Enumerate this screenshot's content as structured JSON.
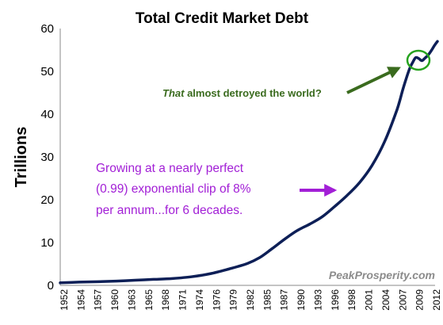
{
  "chart_data": {
    "type": "line",
    "title": "Total Credit Market Debt",
    "ylabel": "Trillions",
    "xlabel": "",
    "ylim": [
      0,
      60
    ],
    "xlim": [
      1952,
      2012.5
    ],
    "y_ticks": [
      "0",
      "10",
      "20",
      "30",
      "40",
      "50",
      "60"
    ],
    "x_ticks": [
      "1952",
      "1954",
      "1957",
      "1960",
      "1963",
      "1965",
      "1968",
      "1971",
      "1974",
      "1976",
      "1979",
      "1982",
      "1985",
      "1987",
      "1990",
      "1993",
      "1996",
      "1998",
      "2001",
      "2004",
      "2007",
      "2009",
      "2012"
    ],
    "grid": false,
    "colors": {
      "line": "#0d1f57",
      "annotation_green": "#3a6b1e",
      "highlight_circle": "#26a31f",
      "annotation_purple": "#a21fd6",
      "watermark": "#8c8c8c"
    },
    "series": [
      {
        "x": [
          1952,
          1955,
          1958,
          1961,
          1964,
          1967,
          1970,
          1973,
          1976,
          1979,
          1982,
          1984,
          1986,
          1988,
          1990,
          1992,
          1994,
          1996,
          1998,
          2000,
          2002,
          2004,
          2006,
          2007,
          2008,
          2008.5,
          2009,
          2009.5,
          2010,
          2010.5,
          2011,
          2011.5,
          2012,
          2012.5
        ],
        "y": [
          0.6,
          0.75,
          0.85,
          1.0,
          1.2,
          1.4,
          1.6,
          2.0,
          2.7,
          3.8,
          5.1,
          6.5,
          8.6,
          10.8,
          12.8,
          14.3,
          16.0,
          18.4,
          21.0,
          24.0,
          28.0,
          33.5,
          41.0,
          46.0,
          50.5,
          52.0,
          53.2,
          53.0,
          52.5,
          53.1,
          53.8,
          54.8,
          56.0,
          57.0
        ]
      }
    ],
    "annotations": [
      {
        "emphasis": "That",
        "text": " almost detroyed the world?"
      },
      {
        "lines": [
          "Growing at a nearly perfect",
          "(0.99) exponential clip of 8%",
          "per annum...for 6 decades."
        ]
      }
    ],
    "watermark": "PeakProsperity.com"
  }
}
